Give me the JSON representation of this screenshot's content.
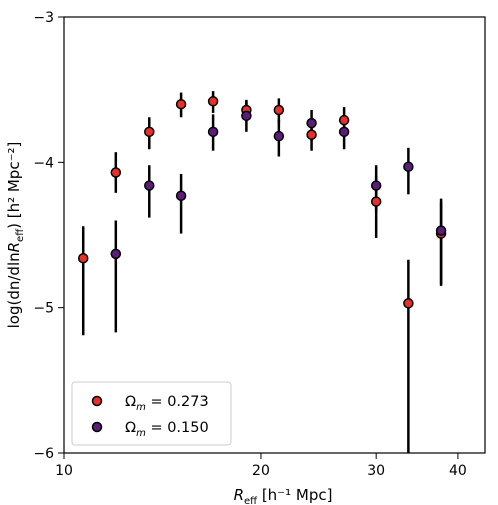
{
  "chart_data": {
    "type": "scatter",
    "xscale": "log",
    "xlim": [
      10,
      44
    ],
    "ylim": [
      -6,
      -3
    ],
    "xlabel": {
      "main": "R",
      "sub": "eff",
      "rest": " [h⁻¹ Mpc]"
    },
    "ylabel": {
      "pre": "log(dn/dln",
      "R": "R",
      "sub": "eff",
      "post": ") [h² Mpc⁻²]"
    },
    "xticks": [
      {
        "value": 10,
        "label": "10"
      },
      {
        "value": 20,
        "label": "20"
      },
      {
        "value": 30,
        "label": "30"
      },
      {
        "value": 40,
        "label": "40"
      }
    ],
    "yticks": [
      {
        "value": -6,
        "label": "−6"
      },
      {
        "value": -5,
        "label": "−5"
      },
      {
        "value": -4,
        "label": "−4"
      },
      {
        "value": -3,
        "label": "−3"
      }
    ],
    "grid": false,
    "legend_position": "lower-left",
    "series": [
      {
        "name": "Ωm = 0.273",
        "legend": {
          "omega": "Ω",
          "sub": "m",
          "eq": " = 0.273"
        },
        "color": "#e8302a",
        "points": [
          {
            "x": 10.7,
            "y": -4.66,
            "lo": -5.19,
            "hi": -4.44
          },
          {
            "x": 12.0,
            "y": -4.07,
            "lo": -4.21,
            "hi": -3.93
          },
          {
            "x": 13.5,
            "y": -3.79,
            "lo": -3.91,
            "hi": -3.69
          },
          {
            "x": 15.1,
            "y": -3.6,
            "lo": -3.69,
            "hi": -3.52
          },
          {
            "x": 16.9,
            "y": -3.58,
            "lo": -3.66,
            "hi": -3.51
          },
          {
            "x": 19.0,
            "y": -3.64,
            "lo": -3.72,
            "hi": -3.57
          },
          {
            "x": 21.3,
            "y": -3.64,
            "lo": -3.73,
            "hi": -3.56
          },
          {
            "x": 23.9,
            "y": -3.81,
            "lo": -3.92,
            "hi": -3.72
          },
          {
            "x": 26.8,
            "y": -3.71,
            "lo": -3.81,
            "hi": -3.62
          },
          {
            "x": 30.0,
            "y": -4.27,
            "lo": -4.52,
            "hi": -4.09
          },
          {
            "x": 33.6,
            "y": -4.97,
            "lo": -6.1,
            "hi": -4.67
          },
          {
            "x": 37.7,
            "y": -4.49,
            "lo": -4.85,
            "hi": -4.27
          }
        ]
      },
      {
        "name": "Ωm = 0.150",
        "legend": {
          "omega": "Ω",
          "sub": "m",
          "eq": " = 0.150"
        },
        "color": "#5a1e7a",
        "points": [
          {
            "x": 12.0,
            "y": -4.63,
            "lo": -5.17,
            "hi": -4.4
          },
          {
            "x": 13.5,
            "y": -4.16,
            "lo": -4.38,
            "hi": -4.02
          },
          {
            "x": 15.1,
            "y": -4.23,
            "lo": -4.49,
            "hi": -4.08
          },
          {
            "x": 16.9,
            "y": -3.79,
            "lo": -3.92,
            "hi": -3.67
          },
          {
            "x": 19.0,
            "y": -3.68,
            "lo": -3.79,
            "hi": -3.58
          },
          {
            "x": 21.3,
            "y": -3.82,
            "lo": -3.96,
            "hi": -3.71
          },
          {
            "x": 23.9,
            "y": -3.73,
            "lo": -3.85,
            "hi": -3.64
          },
          {
            "x": 26.8,
            "y": -3.79,
            "lo": -3.91,
            "hi": -3.68
          },
          {
            "x": 30.0,
            "y": -4.16,
            "lo": -4.34,
            "hi": -4.02
          },
          {
            "x": 33.6,
            "y": -4.03,
            "lo": -4.22,
            "hi": -3.9
          },
          {
            "x": 37.7,
            "y": -4.47,
            "lo": -4.84,
            "hi": -4.25
          }
        ]
      }
    ]
  }
}
